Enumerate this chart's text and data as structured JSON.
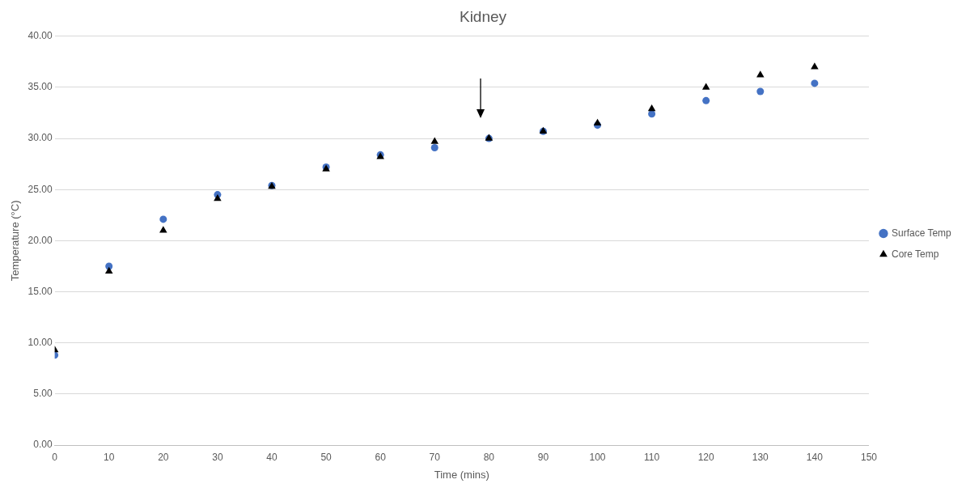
{
  "chart_data": {
    "type": "scatter",
    "title": "Kidney",
    "xlabel": "Time (mins)",
    "ylabel": "Temperature (°C)",
    "x": [
      0,
      10,
      20,
      30,
      40,
      50,
      60,
      70,
      80,
      90,
      100,
      110,
      120,
      130,
      140
    ],
    "series": [
      {
        "name": "Surface Temp",
        "color": "#4472c4",
        "marker": "circle",
        "values": [
          8.8,
          17.5,
          22.1,
          24.5,
          25.4,
          27.2,
          28.4,
          29.1,
          30.0,
          30.7,
          31.3,
          32.4,
          33.7,
          34.6,
          35.4
        ]
      },
      {
        "name": "Core Temp",
        "color": "#000000",
        "marker": "triangle",
        "values": [
          9.3,
          17.0,
          21.0,
          24.1,
          25.3,
          27.0,
          28.2,
          29.7,
          30.0,
          30.7,
          31.5,
          32.9,
          35.0,
          36.2,
          37.0
        ]
      }
    ],
    "xlim": [
      0,
      150
    ],
    "xticks": [
      0,
      10,
      20,
      30,
      40,
      50,
      60,
      70,
      80,
      90,
      100,
      110,
      120,
      130,
      140,
      150
    ],
    "ylim": [
      0,
      40
    ],
    "yticks": [
      {
        "value": 0,
        "label": "0.00"
      },
      {
        "value": 5,
        "label": "5.00"
      },
      {
        "value": 10,
        "label": "10.00"
      },
      {
        "value": 15,
        "label": "15.00"
      },
      {
        "value": 20,
        "label": "20.00"
      },
      {
        "value": 25,
        "label": "25.00"
      },
      {
        "value": 30,
        "label": "30.00"
      },
      {
        "value": 35,
        "label": "35.00"
      },
      {
        "value": 40,
        "label": "40.00"
      }
    ],
    "grid": "y",
    "legend": "right"
  }
}
